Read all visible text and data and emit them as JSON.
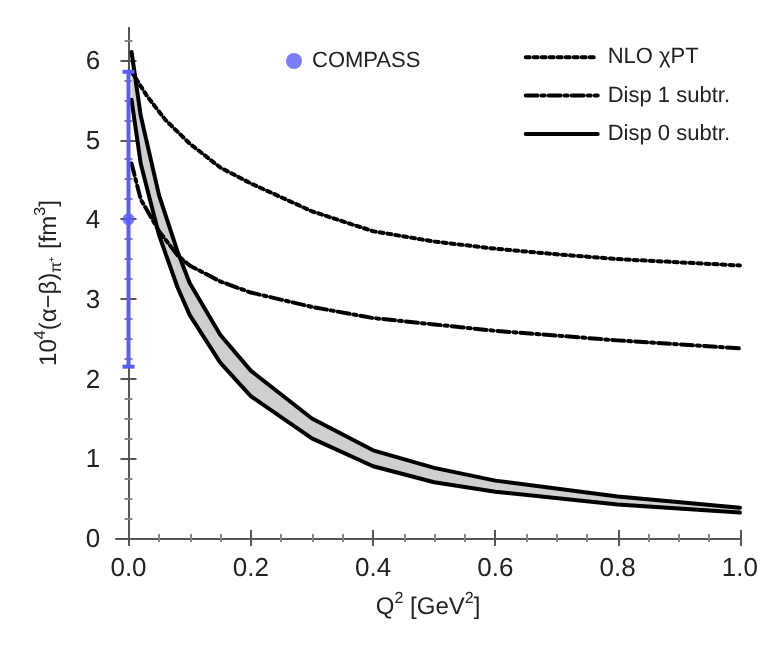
{
  "chart_data": {
    "type": "line",
    "xlabel": "Q$^{2}$ [GeV$^{2}$]",
    "ylabel": "10$^{4}$(α−β)$_{π⁺}$ [fm$^{3}$]",
    "xlim": [
      -0.02,
      1.0
    ],
    "xticks": [
      {
        "value": 0,
        "label": "0.0"
      },
      {
        "value": 0.2,
        "label": "0.2"
      },
      {
        "value": 0.4,
        "label": "0.4"
      },
      {
        "value": 0.6,
        "label": "0.6"
      },
      {
        "value": 0.8,
        "label": "0.8"
      },
      {
        "value": 1.0,
        "label": "1.0"
      }
    ],
    "ylim": [
      0,
      6.4
    ],
    "yticks": [
      0,
      1,
      2,
      3,
      4,
      5,
      6
    ],
    "legend": "top right",
    "marker": "none",
    "series": [
      {
        "name": "NLO χPT",
        "color": "#000000",
        "line_style": "dotted",
        "x": [
          0.005,
          0.03,
          0.06,
          0.1,
          0.15,
          0.2,
          0.3,
          0.4,
          0.5,
          0.6,
          0.7,
          0.8,
          0.9,
          1.0
        ],
        "values": [
          5.85,
          5.55,
          5.25,
          4.95,
          4.65,
          4.45,
          4.1,
          3.85,
          3.72,
          3.63,
          3.56,
          3.5,
          3.46,
          3.42
        ]
      },
      {
        "name": "Disp 1 subtr.",
        "color": "#000000",
        "line_style": "dashed",
        "x": [
          0.005,
          0.02,
          0.05,
          0.08,
          0.1,
          0.15,
          0.2,
          0.3,
          0.4,
          0.5,
          0.6,
          0.7,
          0.8,
          0.9,
          1.0
        ],
        "values": [
          4.7,
          4.25,
          3.85,
          3.55,
          3.42,
          3.22,
          3.08,
          2.9,
          2.76,
          2.68,
          2.6,
          2.54,
          2.48,
          2.43,
          2.38
        ]
      },
      {
        "name": "Disp 0 subtr.",
        "color": "#000000",
        "line_style": "solid",
        "x": [
          0.005,
          0.02,
          0.05,
          0.08,
          0.1,
          0.15,
          0.2,
          0.3,
          0.4,
          0.5,
          0.6,
          0.8,
          1.0
        ],
        "values": [
          6.1,
          5.3,
          4.3,
          3.6,
          3.2,
          2.55,
          2.1,
          1.5,
          1.1,
          0.88,
          0.72,
          0.52,
          0.38
        ],
        "upper": [
          6.1,
          5.3,
          4.3,
          3.6,
          3.2,
          2.55,
          2.1,
          1.5,
          1.1,
          0.88,
          0.72,
          0.52,
          0.38
        ],
        "lower": [
          5.5,
          4.7,
          3.8,
          3.15,
          2.8,
          2.2,
          1.78,
          1.25,
          0.9,
          0.7,
          0.58,
          0.42,
          0.32
        ]
      },
      {
        "color": "#000000",
        "line_style": "solid",
        "x": [
          0.005,
          0.02,
          0.05,
          0.08,
          0.1,
          0.15,
          0.2,
          0.3,
          0.4,
          0.5,
          0.6,
          0.8,
          1.0
        ],
        "values": [
          5.5,
          4.7,
          3.8,
          3.15,
          2.8,
          2.2,
          1.78,
          1.25,
          0.9,
          0.7,
          0.58,
          0.42,
          0.32
        ]
      },
      {
        "name": "COMPASS",
        "type": "scatter",
        "marker": "circle",
        "color": "#5b5bff",
        "x": [
          0
        ],
        "values": [
          4.0
        ],
        "errors": [
          [
            2.15,
            5.85
          ]
        ]
      }
    ]
  }
}
